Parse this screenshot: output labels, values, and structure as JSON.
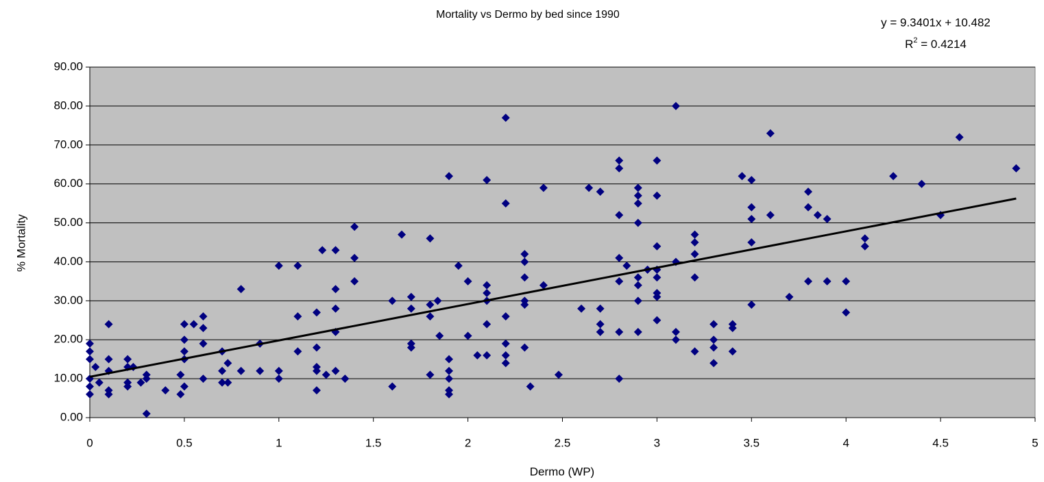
{
  "chart_data": {
    "type": "scatter",
    "title": "Mortality vs Dermo by bed since 1990",
    "x_label": "Dermo (WP)",
    "y_label": "% Mortality",
    "equation": "y = 9.3401x + 10.482",
    "r2_prefix": "R",
    "r2_sup": "2",
    "r2_rest": " = 0.4214",
    "trendline": {
      "slope": 9.3401,
      "intercept": 10.482,
      "color": "#000000"
    },
    "xlim": [
      0,
      5
    ],
    "xticks": [
      0,
      0.5,
      1,
      1.5,
      2,
      2.5,
      3,
      3.5,
      4,
      4.5,
      5
    ],
    "ylim": [
      0,
      90
    ],
    "yticks": [
      {
        "value": 0,
        "label": "0.00"
      },
      {
        "value": 10,
        "label": "10.00"
      },
      {
        "value": 20,
        "label": "20.00"
      },
      {
        "value": 30,
        "label": "30.00"
      },
      {
        "value": 40,
        "label": "40.00"
      },
      {
        "value": 50,
        "label": "50.00"
      },
      {
        "value": 60,
        "label": "60.00"
      },
      {
        "value": 70,
        "label": "70.00"
      },
      {
        "value": 80,
        "label": "80.00"
      },
      {
        "value": 90,
        "label": "90.00"
      }
    ],
    "grid": true,
    "plot_background": "#c0c0c0",
    "x": [
      0,
      0,
      0,
      0,
      0,
      0,
      0.03,
      0.05,
      0.1,
      0.1,
      0.1,
      0.1,
      0.1,
      0.2,
      0.2,
      0.2,
      0.2,
      0.23,
      0.27,
      0.3,
      0.3,
      0.3,
      0.4,
      0.48,
      0.48,
      0.5,
      0.5,
      0.5,
      0.5,
      0.5,
      0.55,
      0.6,
      0.6,
      0.6,
      0.6,
      0.7,
      0.7,
      0.7,
      0.73,
      0.73,
      0.8,
      0.8,
      0.9,
      0.9,
      1,
      1,
      1,
      1.1,
      1.1,
      1.1,
      1.2,
      1.2,
      1.2,
      1.2,
      1.2,
      1.23,
      1.25,
      1.3,
      1.3,
      1.3,
      1.3,
      1.3,
      1.35,
      1.4,
      1.4,
      1.4,
      1.6,
      1.6,
      1.65,
      1.7,
      1.7,
      1.7,
      1.7,
      1.8,
      1.8,
      1.8,
      1.8,
      1.84,
      1.85,
      1.9,
      1.9,
      1.9,
      1.9,
      1.9,
      1.9,
      1.95,
      2,
      2,
      2.05,
      2.1,
      2.1,
      2.1,
      2.1,
      2.1,
      2.1,
      2.2,
      2.2,
      2.2,
      2.2,
      2.2,
      2.2,
      2.3,
      2.3,
      2.3,
      2.3,
      2.3,
      2.3,
      2.33,
      2.4,
      2.4,
      2.48,
      2.6,
      2.64,
      2.7,
      2.7,
      2.7,
      2.7,
      2.8,
      2.8,
      2.8,
      2.8,
      2.8,
      2.8,
      2.8,
      2.84,
      2.9,
      2.9,
      2.9,
      2.9,
      2.9,
      2.9,
      2.9,
      2.9,
      2.95,
      3,
      3,
      3,
      3,
      3,
      3,
      3,
      3,
      3.1,
      3.1,
      3.1,
      3.1,
      3.2,
      3.2,
      3.2,
      3.2,
      3.2,
      3.3,
      3.3,
      3.3,
      3.3,
      3.4,
      3.4,
      3.4,
      3.45,
      3.5,
      3.5,
      3.5,
      3.5,
      3.5,
      3.6,
      3.6,
      3.7,
      3.8,
      3.8,
      3.8,
      3.85,
      3.9,
      3.9,
      4,
      4,
      4.1,
      4.1,
      4.25,
      4.4,
      4.5,
      4.6,
      4.9
    ],
    "series": [
      {
        "color": "#000080",
        "values": [
          19,
          17,
          15,
          10,
          8,
          6,
          13,
          9,
          24,
          15,
          12,
          7,
          6,
          15,
          13,
          9,
          8,
          13,
          9,
          11,
          10,
          1,
          7,
          11,
          6,
          24,
          20,
          17,
          15,
          8,
          24,
          26,
          23,
          19,
          10,
          17,
          12,
          9,
          14,
          9,
          33,
          12,
          19,
          12,
          39,
          12,
          10,
          39,
          26,
          17,
          27,
          18,
          13,
          12,
          7,
          43,
          11,
          43,
          33,
          28,
          22,
          12,
          10,
          49,
          41,
          35,
          30,
          8,
          47,
          31,
          28,
          19,
          18,
          46,
          29,
          26,
          11,
          30,
          21,
          62,
          15,
          12,
          10,
          7,
          6,
          39,
          35,
          21,
          16,
          61,
          34,
          32,
          30,
          24,
          16,
          77,
          55,
          26,
          19,
          16,
          14,
          42,
          40,
          36,
          30,
          29,
          18,
          8,
          59,
          34,
          11,
          28,
          59,
          58,
          28,
          24,
          22,
          66,
          64,
          52,
          41,
          35,
          22,
          10,
          39,
          59,
          57,
          55,
          50,
          36,
          34,
          30,
          22,
          38,
          66,
          57,
          44,
          38,
          36,
          32,
          31,
          25,
          80,
          40,
          22,
          20,
          47,
          45,
          42,
          36,
          17,
          24,
          20,
          18,
          14,
          24,
          23,
          17,
          62,
          61,
          54,
          51,
          45,
          29,
          73,
          52,
          31,
          58,
          54,
          35,
          52,
          51,
          35,
          35,
          27,
          46,
          44,
          62,
          60,
          52,
          72,
          64
        ]
      }
    ]
  }
}
